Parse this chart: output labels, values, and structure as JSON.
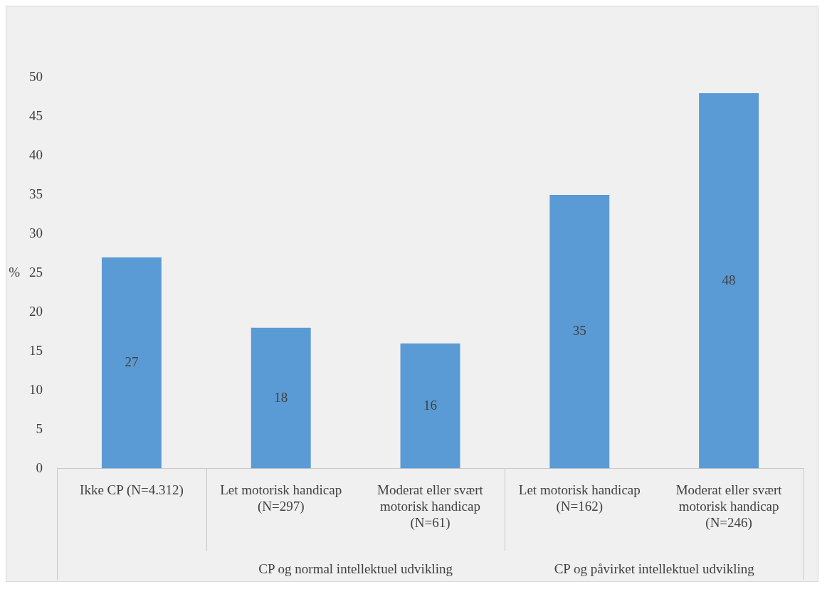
{
  "chart_data": {
    "type": "bar",
    "ylabel": "%",
    "categories": [
      "Ikke CP (N=4.312)",
      "Let motorisk handicap (N=297)",
      "Moderat eller svært motorisk handicap (N=61)",
      "Let motorisk handicap (N=162)",
      "Moderat eller svært motorisk handicap (N=246)"
    ],
    "values": [
      27,
      18,
      16,
      35,
      48
    ],
    "color": "#5b9bd5",
    "ylim": [
      0,
      50
    ],
    "yticks": [
      0,
      5,
      10,
      15,
      20,
      25,
      30,
      35,
      40,
      45,
      50
    ],
    "grid": false,
    "legend": false,
    "data_labels": true,
    "annotations": [
      "CP og normal intellektuel udvikling",
      "CP og påvirket intellektuel udvikling"
    ]
  }
}
